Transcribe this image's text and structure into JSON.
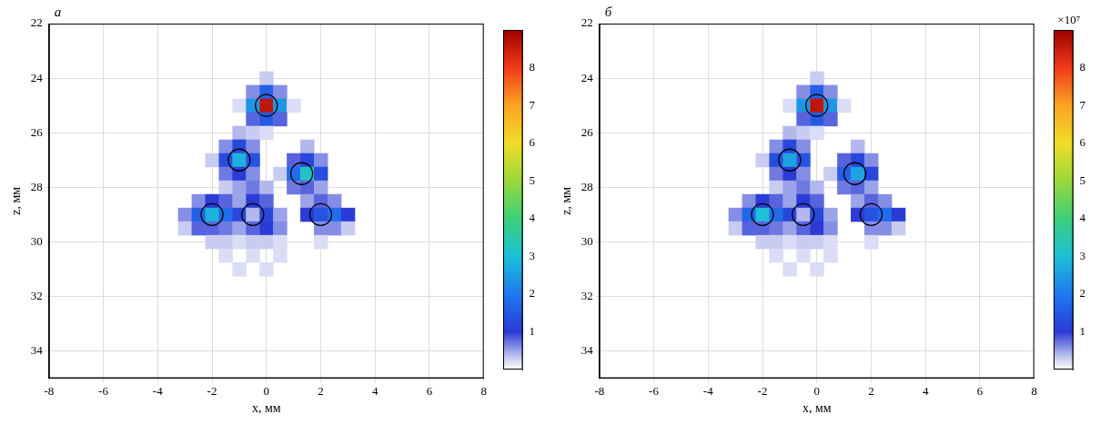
{
  "chart_data": [
    {
      "type": "heatmap",
      "title": "а",
      "x_label": "x, мм",
      "y_label": "z, мм",
      "xlim": [
        -8,
        8
      ],
      "xticks": [
        -8,
        -6,
        -4,
        -2,
        0,
        2,
        4,
        6,
        8
      ],
      "ylim": [
        22,
        35
      ],
      "yticks": [
        22,
        24,
        26,
        28,
        30,
        32,
        34
      ],
      "grid": true,
      "x": [
        -3,
        -2.5,
        -2,
        -1.5,
        -1,
        -0.5,
        0,
        0.5,
        1,
        1.5,
        2,
        2.5,
        3
      ],
      "z": [
        24,
        24.5,
        25,
        25.5,
        26,
        26.5,
        27,
        27.5,
        28,
        28.5,
        29,
        29.5,
        30,
        30.5,
        31
      ],
      "cells": [
        [
          0,
          0,
          0,
          0,
          0,
          0,
          0.3,
          0,
          0,
          0,
          0,
          0,
          0
        ],
        [
          0,
          0,
          0,
          0,
          0,
          0.6,
          1.6,
          0.6,
          0,
          0,
          0,
          0,
          0
        ],
        [
          0,
          0,
          0,
          0,
          0.2,
          2.4,
          8.6,
          2.4,
          0.2,
          0,
          0,
          0,
          0
        ],
        [
          0,
          0,
          0,
          0,
          0,
          0.8,
          1.5,
          0.8,
          0,
          0,
          0,
          0,
          0
        ],
        [
          0,
          0,
          0,
          0,
          0.4,
          0.3,
          0.2,
          0,
          0,
          0,
          0,
          0,
          0
        ],
        [
          0,
          0,
          0,
          0.6,
          1.2,
          0.6,
          0,
          0,
          0,
          0.4,
          0,
          0,
          0
        ],
        [
          0,
          0,
          0.3,
          1.3,
          2.8,
          1.4,
          0,
          0,
          0.8,
          1.2,
          0.6,
          0,
          0
        ],
        [
          0,
          0,
          0,
          0.7,
          1.0,
          0.6,
          0,
          0.3,
          1.8,
          3.2,
          1.3,
          0,
          0
        ],
        [
          0,
          0,
          0,
          0.3,
          0.5,
          0.7,
          0.4,
          0,
          0.7,
          0.8,
          0.5,
          0,
          0
        ],
        [
          0,
          0.6,
          1.0,
          0.8,
          0.5,
          1.0,
          0.8,
          0,
          0,
          0.5,
          0.8,
          0.6,
          0
        ],
        [
          0.6,
          1.6,
          2.8,
          1.8,
          1.2,
          0.4,
          1.2,
          0.5,
          0,
          1.0,
          1.4,
          1.8,
          1.0
        ],
        [
          0.3,
          0.8,
          0.8,
          0.7,
          0.5,
          0.8,
          1.0,
          0.6,
          0,
          0,
          0.6,
          0.6,
          0.3
        ],
        [
          0,
          0,
          0.3,
          0.3,
          0.2,
          0.3,
          0.3,
          0.2,
          0,
          0,
          0.2,
          0,
          0
        ],
        [
          0,
          0,
          0,
          0.2,
          0,
          0.2,
          0,
          0.2,
          0,
          0,
          0,
          0,
          0
        ],
        [
          0,
          0,
          0,
          0,
          0.2,
          0,
          0.2,
          0,
          0,
          0,
          0,
          0,
          0
        ]
      ],
      "colorbar_lim": [
        0,
        9
      ],
      "colorbar_ticks": [
        1,
        2,
        3,
        4,
        5,
        6,
        7,
        8
      ],
      "circles": {
        "x": [
          0,
          -1,
          1.3,
          -2,
          -0.5,
          2
        ],
        "z": [
          25,
          27,
          27.5,
          29,
          29,
          29
        ],
        "marker": "circle",
        "color": "#000000"
      }
    },
    {
      "type": "heatmap",
      "title": "б",
      "x_label": "x, мм",
      "y_label": "z, мм",
      "xlim": [
        -8,
        8
      ],
      "xticks": [
        -8,
        -6,
        -4,
        -2,
        0,
        2,
        4,
        6,
        8
      ],
      "ylim": [
        22,
        35
      ],
      "yticks": [
        22,
        24,
        26,
        28,
        30,
        32,
        34
      ],
      "grid": true,
      "x": [
        -3,
        -2.5,
        -2,
        -1.5,
        -1,
        -0.5,
        0,
        0.5,
        1,
        1.5,
        2,
        2.5,
        3
      ],
      "z": [
        24,
        24.5,
        25,
        25.5,
        26,
        26.5,
        27,
        27.5,
        28,
        28.5,
        29,
        29.5,
        30,
        30.5,
        31
      ],
      "cells": [
        [
          0,
          0,
          0,
          0,
          0,
          0,
          0.3,
          0,
          0,
          0,
          0,
          0,
          0
        ],
        [
          0,
          0,
          0,
          0,
          0,
          0.6,
          1.6,
          0.6,
          0,
          0,
          0,
          0,
          0
        ],
        [
          0,
          0,
          0,
          0,
          0.2,
          2.4,
          8.6,
          2.4,
          0.2,
          0,
          0,
          0,
          0
        ],
        [
          0,
          0,
          0,
          0,
          0,
          0.8,
          1.5,
          0.8,
          0,
          0,
          0,
          0,
          0
        ],
        [
          0,
          0,
          0,
          0,
          0.4,
          0.3,
          0.2,
          0,
          0,
          0,
          0,
          0,
          0
        ],
        [
          0,
          0,
          0,
          0.6,
          1.2,
          0.6,
          0,
          0,
          0,
          0.4,
          0,
          0,
          0
        ],
        [
          0,
          0,
          0.3,
          1.3,
          2.6,
          1.4,
          0,
          0,
          0.8,
          1.2,
          0.6,
          0,
          0
        ],
        [
          0,
          0,
          0,
          0.7,
          1.0,
          0.6,
          0,
          0.3,
          1.6,
          2.6,
          1.2,
          0,
          0
        ],
        [
          0,
          0,
          0,
          0.3,
          0.5,
          0.7,
          0.4,
          0,
          0.7,
          0.8,
          0.5,
          0,
          0
        ],
        [
          0,
          0.6,
          1.0,
          0.8,
          0.5,
          1.0,
          0.8,
          0,
          0,
          0.5,
          0.8,
          0.6,
          0
        ],
        [
          0.6,
          1.7,
          3.0,
          1.8,
          1.2,
          0.4,
          1.2,
          0.5,
          0,
          1.0,
          1.4,
          1.8,
          1.0
        ],
        [
          0.3,
          0.8,
          0.8,
          0.7,
          0.5,
          0.8,
          1.0,
          0.6,
          0,
          0,
          0.6,
          0.6,
          0.3
        ],
        [
          0,
          0,
          0.3,
          0.3,
          0.2,
          0.3,
          0.3,
          0.2,
          0,
          0,
          0.2,
          0,
          0
        ],
        [
          0,
          0,
          0,
          0.2,
          0,
          0.2,
          0,
          0.2,
          0,
          0,
          0,
          0,
          0
        ],
        [
          0,
          0,
          0,
          0,
          0.2,
          0,
          0.2,
          0,
          0,
          0,
          0,
          0,
          0
        ]
      ],
      "colorbar_lim": [
        0,
        9
      ],
      "colorbar_ticks": [
        1,
        2,
        3,
        4,
        5,
        6,
        7,
        8
      ],
      "colorbar_label": "×10⁷",
      "circles": {
        "x": [
          0,
          -1,
          1.4,
          -2,
          -0.5,
          2
        ],
        "z": [
          25,
          27,
          27.5,
          29,
          29,
          29
        ],
        "marker": "circle",
        "color": "#000000"
      }
    }
  ]
}
